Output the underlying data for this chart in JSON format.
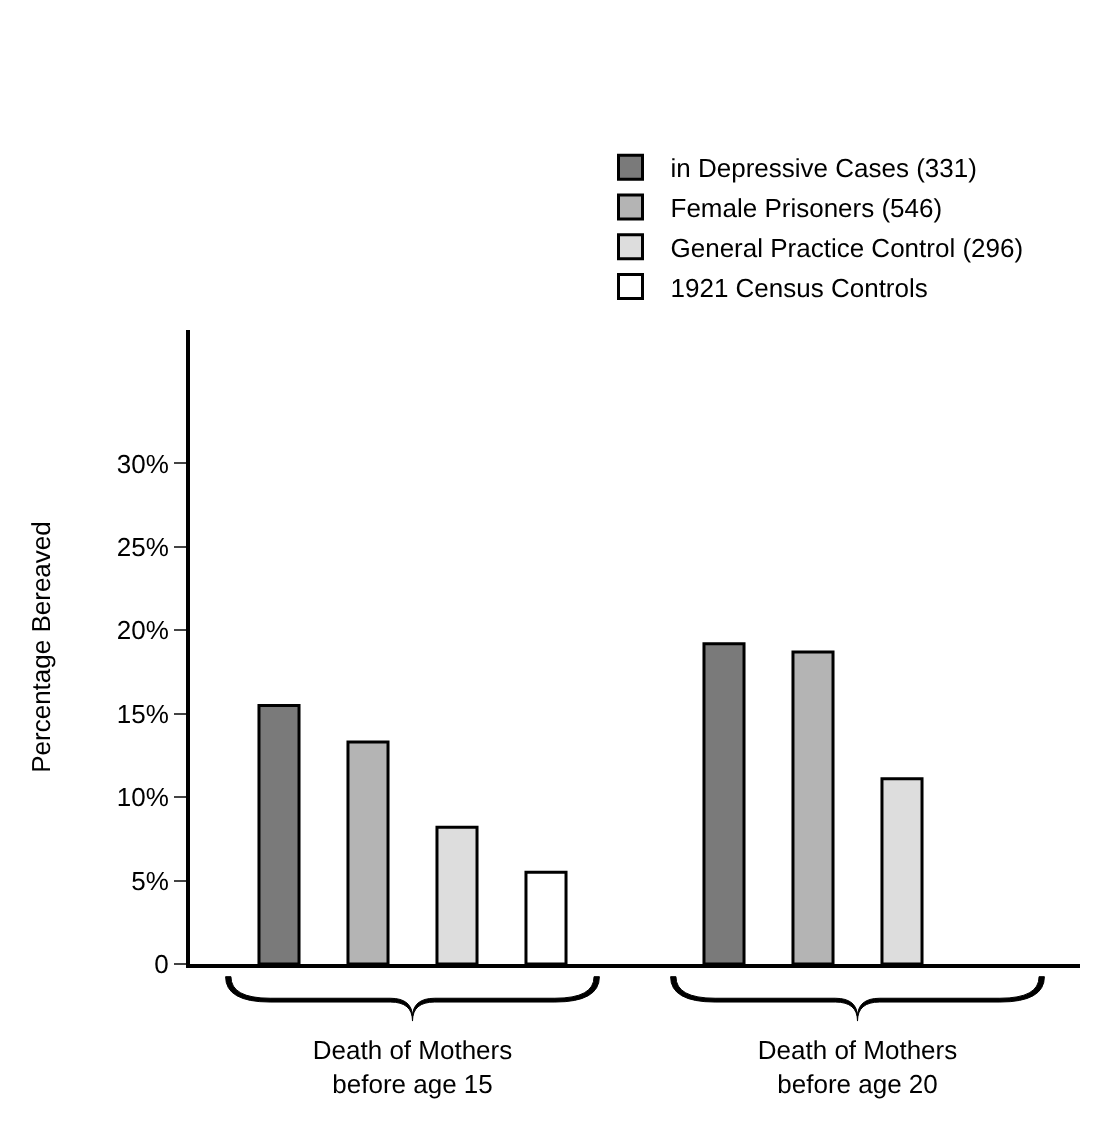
{
  "chart_data": {
    "type": "bar",
    "ylabel": "Percentage Bereaved",
    "categories": [
      "Death of Mothers\nbefore age 15",
      "Death of Mothers\nbefore age 20"
    ],
    "series": [
      {
        "name": "in Depressive Cases (331)",
        "color": "#7a7a7a",
        "values": [
          15.5,
          19.2
        ]
      },
      {
        "name": "Female Prisoners (546)",
        "color": "#b4b4b4",
        "values": [
          13.3,
          18.7
        ]
      },
      {
        "name": "General Practice Control (296)",
        "color": "#dddddd",
        "values": [
          8.2,
          11.1
        ]
      },
      {
        "name": "1921 Census Controls",
        "color": "#ffffff",
        "values": [
          5.5,
          null
        ]
      }
    ],
    "ylim": [
      0,
      38
    ],
    "yticks": [
      {
        "value": 0,
        "label": "0"
      },
      {
        "value": 5,
        "label": "5%"
      },
      {
        "value": 10,
        "label": "10%"
      },
      {
        "value": 15,
        "label": "15%"
      },
      {
        "value": 20,
        "label": "20%"
      },
      {
        "value": 25,
        "label": "25%"
      },
      {
        "value": 30,
        "label": "30%"
      }
    ],
    "legend": "top"
  }
}
